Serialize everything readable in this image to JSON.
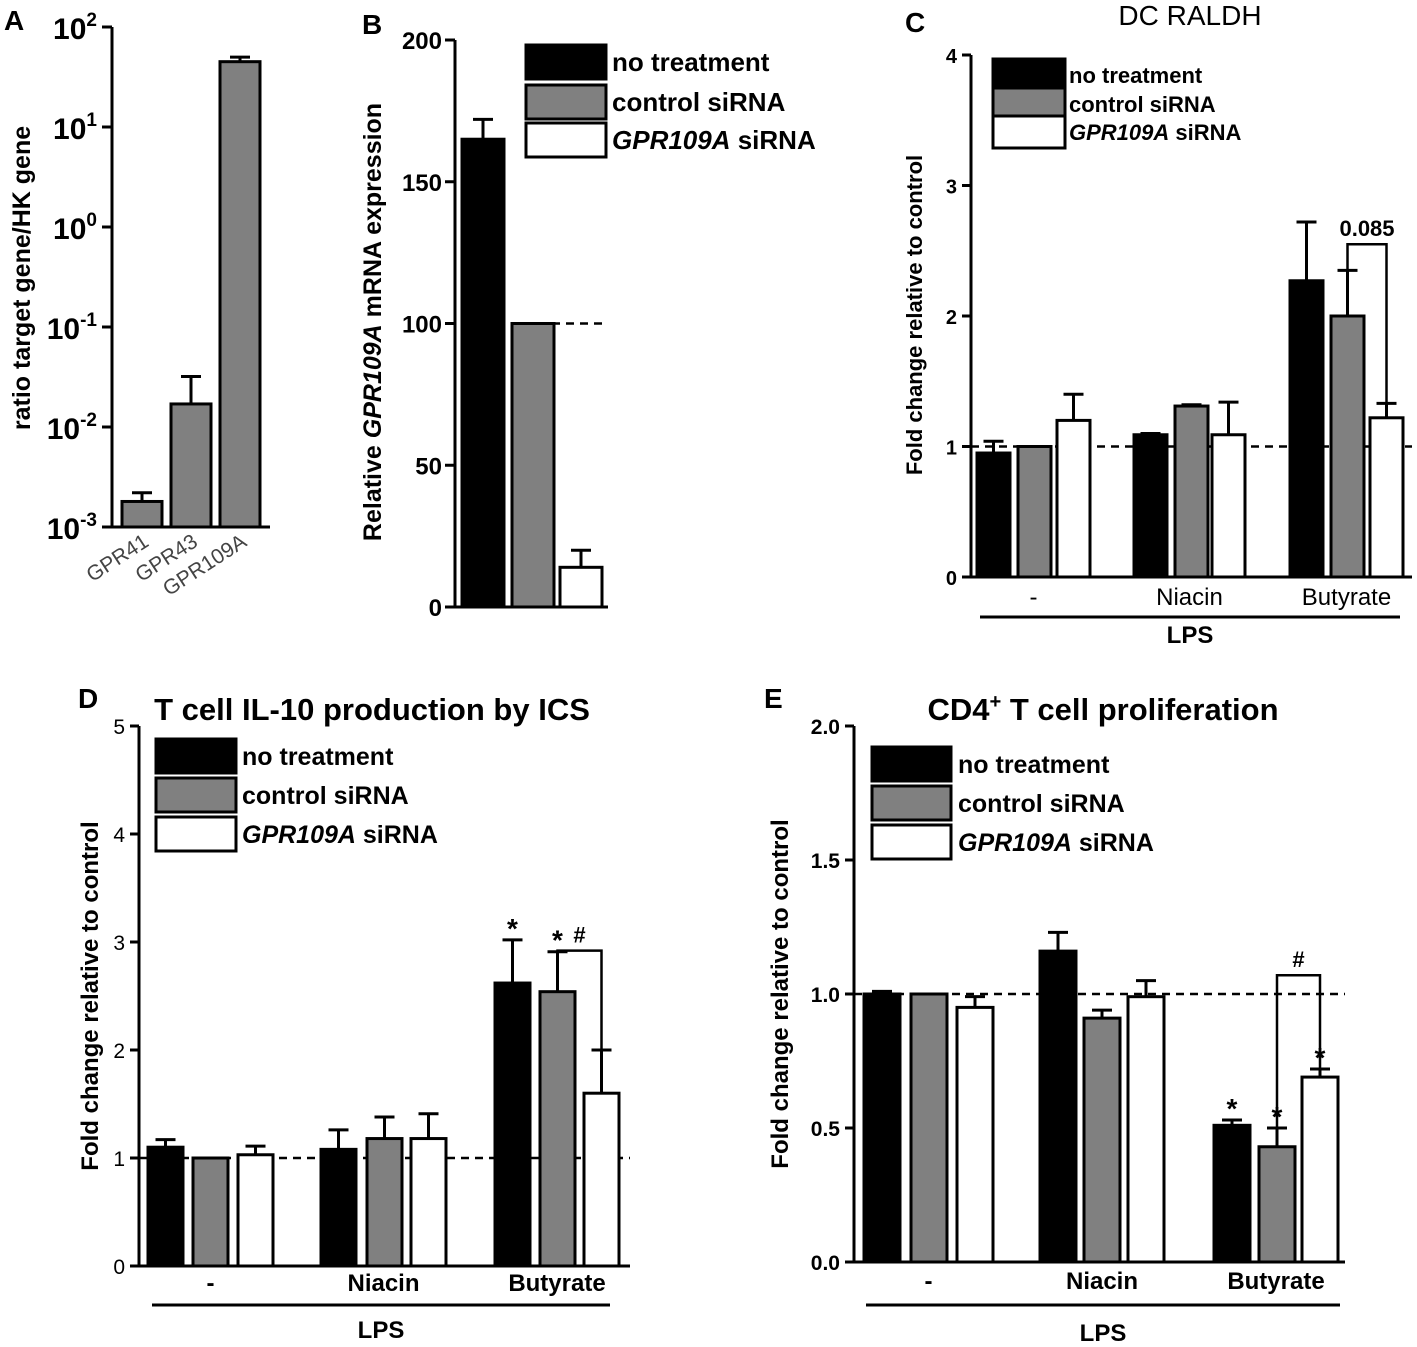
{
  "colors": {
    "no_treatment": "#000000",
    "control_siRNA": "#808080",
    "GPR109A_siRNA": "#ffffff"
  },
  "chart_data": [
    {
      "panel": "A",
      "type": "bar",
      "title": "",
      "ylabel": "ratio target gene/HK gene",
      "xlabel": "",
      "yscale": "log",
      "ylim": [
        0.001,
        100
      ],
      "yticks": [
        "10^2",
        "10^1",
        "10^0",
        "10^-1",
        "10^-2",
        "10^-3"
      ],
      "categories": [
        "GPR41",
        "GPR43",
        "GPR109A"
      ],
      "values": [
        0.0018,
        0.017,
        45
      ],
      "errors_upper": [
        0.0022,
        0.032,
        50
      ]
    },
    {
      "panel": "B",
      "type": "bar",
      "title": "",
      "ylabel_parts": [
        "Relative ",
        "GPR109A",
        " mRNA expression"
      ],
      "ylim": [
        0,
        200
      ],
      "yticks": [
        0,
        50,
        100,
        150,
        200
      ],
      "reference_line": 100,
      "legend": [
        "no treatment",
        "control siRNA",
        "GPR109A siRNA"
      ],
      "series": [
        {
          "name": "no treatment",
          "value": 165,
          "error_upper": 172
        },
        {
          "name": "control siRNA",
          "value": 100,
          "error_upper": 100
        },
        {
          "name": "GPR109A siRNA",
          "value": 14,
          "error_upper": 20
        }
      ]
    },
    {
      "panel": "C",
      "type": "bar",
      "title": "DC RALDH",
      "ylabel": "Fold change relative to control",
      "ylim": [
        0,
        4
      ],
      "yticks": [
        0,
        1,
        2,
        3,
        4
      ],
      "reference_line": 1,
      "categories": [
        "-",
        "Niacin",
        "Butyrate"
      ],
      "group_label": "LPS",
      "legend": [
        "no treatment",
        "control siRNA",
        "GPR109A siRNA"
      ],
      "series": [
        {
          "name": "no treatment",
          "values": [
            0.95,
            1.09,
            2.27
          ],
          "errors_upper": [
            1.04,
            1.1,
            2.72
          ]
        },
        {
          "name": "control siRNA",
          "values": [
            1.0,
            1.31,
            2.0
          ],
          "errors_upper": [
            1.0,
            1.32,
            2.35
          ]
        },
        {
          "name": "GPR109A siRNA",
          "values": [
            1.2,
            1.09,
            1.22
          ],
          "errors_upper": [
            1.4,
            1.34,
            1.33
          ]
        }
      ],
      "annotations": [
        {
          "type": "bracket",
          "category": "Butyrate",
          "between": [
            "control siRNA",
            "GPR109A siRNA"
          ],
          "at": 2.55,
          "label": "0.085"
        }
      ],
      "stars": []
    },
    {
      "panel": "D",
      "type": "bar",
      "title": "T cell IL-10 production by ICS",
      "ylabel": "Fold change relative to control",
      "ylim": [
        0,
        5
      ],
      "yticks": [
        0,
        1,
        2,
        3,
        4,
        5
      ],
      "reference_line": 1,
      "categories": [
        "-",
        "Niacin",
        "Butyrate"
      ],
      "group_label": "LPS",
      "legend": [
        "no treatment",
        "control siRNA",
        "GPR109A siRNA"
      ],
      "series": [
        {
          "name": "no treatment",
          "values": [
            1.1,
            1.08,
            2.62
          ],
          "errors_upper": [
            1.17,
            1.26,
            3.02
          ]
        },
        {
          "name": "control siRNA",
          "values": [
            1.0,
            1.18,
            2.54
          ],
          "errors_upper": [
            1.0,
            1.38,
            2.91
          ]
        },
        {
          "name": "GPR109A siRNA",
          "values": [
            1.03,
            1.18,
            1.6
          ],
          "errors_upper": [
            1.11,
            1.41,
            2.0
          ]
        }
      ],
      "annotations": [
        {
          "type": "bracket",
          "category": "Butyrate",
          "between": [
            "control siRNA",
            "GPR109A siRNA"
          ],
          "at": 2.92,
          "label": "#"
        }
      ],
      "stars": [
        {
          "category": "Butyrate",
          "series": "no treatment",
          "label": "*"
        },
        {
          "category": "Butyrate",
          "series": "control siRNA",
          "label": "*"
        }
      ]
    },
    {
      "panel": "E",
      "type": "bar",
      "title": "CD4+ T cell proliferation",
      "ylabel": "Fold change relative to control",
      "ylim": [
        0,
        2
      ],
      "yticks": [
        "0.0",
        "0.5",
        "1.0",
        "1.5",
        "2.0"
      ],
      "reference_line": 1,
      "categories": [
        "-",
        "Niacin",
        "Butyrate"
      ],
      "group_label": "LPS",
      "legend": [
        "no treatment",
        "control siRNA",
        "GPR109A siRNA"
      ],
      "series": [
        {
          "name": "no treatment",
          "values": [
            1.0,
            1.16,
            0.51
          ],
          "errors_upper": [
            1.01,
            1.23,
            0.53
          ]
        },
        {
          "name": "control siRNA",
          "values": [
            1.0,
            0.91,
            0.43
          ],
          "errors_upper": [
            1.0,
            0.94,
            0.5
          ]
        },
        {
          "name": "GPR109A siRNA",
          "values": [
            0.95,
            0.99,
            0.69
          ],
          "errors_upper": [
            0.99,
            1.05,
            0.72
          ]
        }
      ],
      "annotations": [
        {
          "type": "bracket",
          "category": "Butyrate",
          "between": [
            "control siRNA",
            "GPR109A siRNA"
          ],
          "at": 1.07,
          "label": "#"
        }
      ],
      "stars": [
        {
          "category": "Butyrate",
          "series": "no treatment",
          "label": "*"
        },
        {
          "category": "Butyrate",
          "series": "control siRNA",
          "label": "*"
        },
        {
          "category": "Butyrate",
          "series": "GPR109A siRNA",
          "label": "*"
        }
      ]
    }
  ]
}
